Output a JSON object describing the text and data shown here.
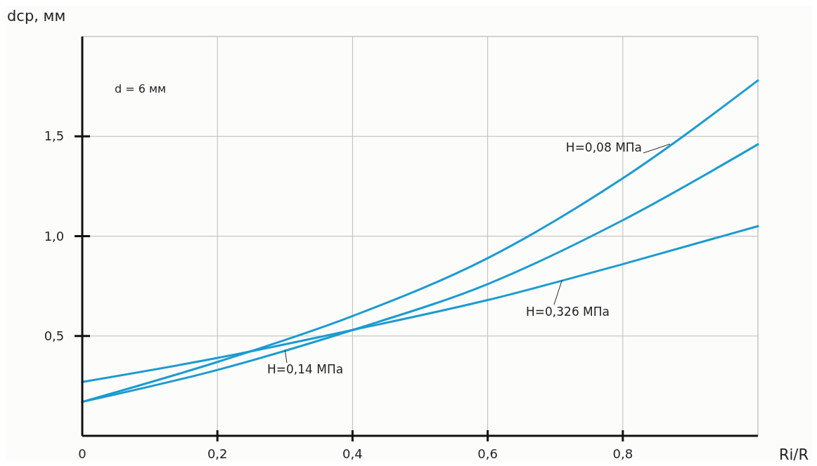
{
  "chart_data": {
    "type": "line",
    "xlabel": "Ri/R",
    "ylabel": "dср, мм",
    "annotations": [
      "d = 6 мм"
    ],
    "x": [
      0,
      0.2,
      0.4,
      0.6,
      0.8,
      1.0
    ],
    "series": [
      {
        "name": "H=0,08 МПа",
        "color": "#1a9bd0",
        "values": [
          0.17,
          0.37,
          0.6,
          0.89,
          1.29,
          1.78
        ]
      },
      {
        "name": "H=0,14 МПа",
        "color": "#1a9bd0",
        "values": [
          0.17,
          0.33,
          0.53,
          0.76,
          1.08,
          1.46
        ]
      },
      {
        "name": "H=0,326 МПа",
        "color": "#1a9bd0",
        "values": [
          0.27,
          0.39,
          0.53,
          0.68,
          0.86,
          1.05
        ]
      }
    ],
    "xlim": [
      0,
      1
    ],
    "ylim": [
      0,
      2
    ],
    "xticks": [
      {
        "value": 0,
        "label": "0"
      },
      {
        "value": 0.2,
        "label": "0,2"
      },
      {
        "value": 0.4,
        "label": "0,4"
      },
      {
        "value": 0.6,
        "label": "0,6"
      },
      {
        "value": 0.8,
        "label": "0,8"
      }
    ],
    "yticks": [
      {
        "value": 0.5,
        "label": "0,5"
      },
      {
        "value": 1,
        "label": "1,0"
      },
      {
        "value": 1.5,
        "label": "1,5"
      }
    ],
    "grid": true,
    "marker": "none",
    "line_style": "solid"
  }
}
